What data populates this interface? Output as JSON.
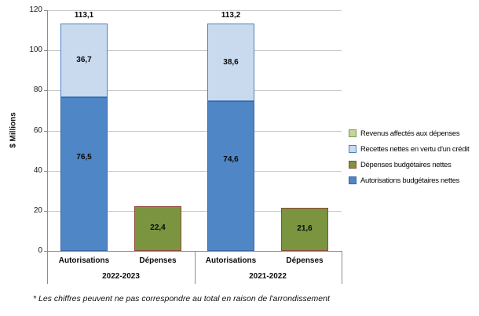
{
  "chart_data": {
    "type": "bar",
    "stacked": true,
    "title": "",
    "ylabel": "$ Millions",
    "ylim": [
      0,
      120
    ],
    "ytick_step": 20,
    "ytick_labels": [
      "0",
      "20",
      "40",
      "60",
      "80",
      "100",
      "120"
    ],
    "grid": true,
    "legend_position": "right",
    "series_colors": {
      "Revenus affectés aux dépenses": {
        "fill": "#c3d69b",
        "border": "#789a49"
      },
      "Recettes nettes en vertu d'un crédit": {
        "fill": "#c9d9ee",
        "border": "#4f81bd"
      },
      "Dépenses budgétaires nettes": {
        "fill": "#7b9440",
        "border": "#8e4a39"
      },
      "Autorisations budgétaires nettes": {
        "fill": "#4f86c6",
        "border": "#3a68a4"
      }
    },
    "groups": [
      {
        "label": "2022-2023",
        "bars": [
          {
            "label": "Autorisations",
            "total": 113.1,
            "total_label": "113,1",
            "segments": [
              {
                "series": "Autorisations budgétaires nettes",
                "value": 76.5,
                "label": "76,5"
              },
              {
                "series": "Recettes nettes en vertu d'un crédit",
                "value": 36.7,
                "label": "36,7"
              }
            ]
          },
          {
            "label": "Dépenses",
            "segments": [
              {
                "series": "Dépenses budgétaires nettes",
                "value": 22.4,
                "label": "22,4"
              }
            ]
          }
        ]
      },
      {
        "label": "2021-2022",
        "bars": [
          {
            "label": "Autorisations",
            "total": 113.2,
            "total_label": "113,2",
            "segments": [
              {
                "series": "Autorisations budgétaires nettes",
                "value": 74.6,
                "label": "74,6"
              },
              {
                "series": "Recettes nettes en vertu d'un crédit",
                "value": 38.6,
                "label": "38,6"
              }
            ]
          },
          {
            "label": "Dépenses",
            "segments": [
              {
                "series": "Dépenses budgétaires nettes",
                "value": 21.6,
                "label": "21,6"
              }
            ]
          }
        ]
      }
    ],
    "legend_entries": [
      {
        "label": "Revenus affectés aux dépenses",
        "series": "Revenus affectés aux dépenses"
      },
      {
        "label": "Recettes nettes en vertu d'un crédit",
        "series": "Recettes nettes en vertu d'un crédit"
      },
      {
        "label": "Dépenses budgétaires nettes",
        "series": "Dépenses budgétaires nettes"
      },
      {
        "label": "Autorisations budgétaires nettes",
        "series": "Autorisations budgétaires nettes"
      }
    ],
    "footnote": "* Les chiffres peuvent ne pas correspondre au total en raison de l'arrondissement"
  }
}
